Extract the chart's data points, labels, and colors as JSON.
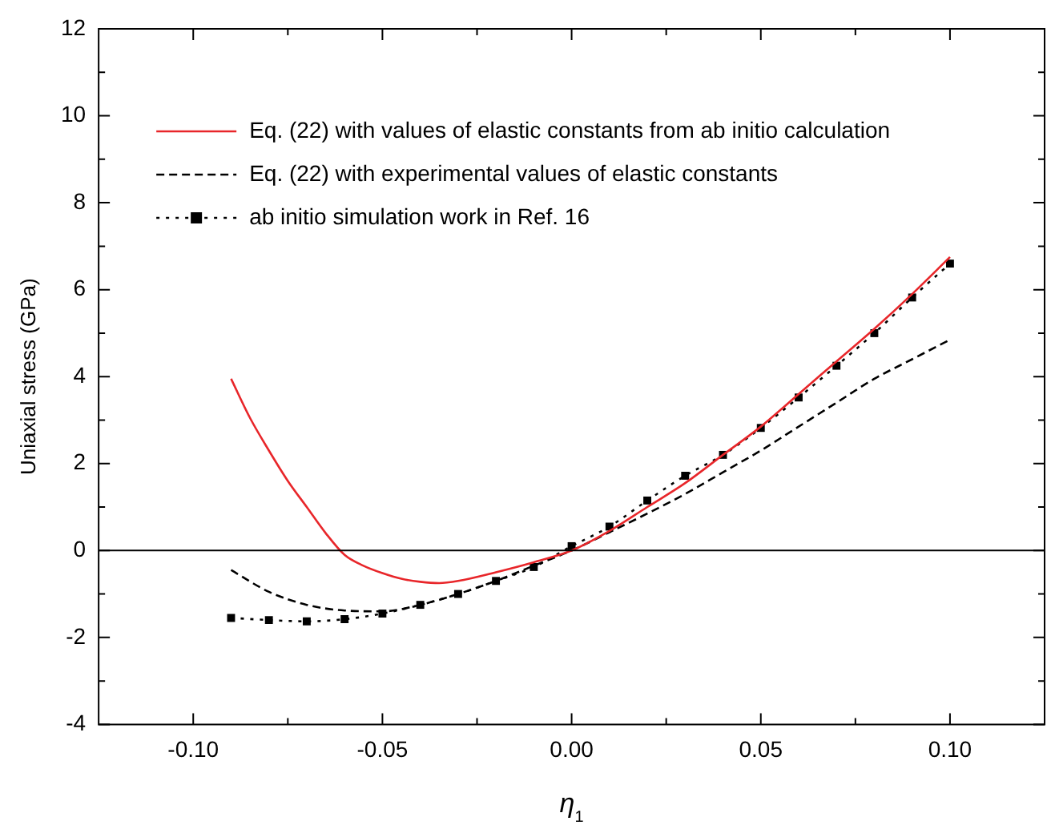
{
  "chart_data": {
    "type": "line",
    "xlabel": "η$_{1}$",
    "ylabel": "Uniaxial stress (GPa)",
    "xlim": [
      -0.125,
      0.125
    ],
    "ylim": [
      -4,
      12
    ],
    "xticks": [
      {
        "value": -0.1,
        "label": "-0.10"
      },
      {
        "value": -0.075,
        "label": null
      },
      {
        "value": -0.05,
        "label": "-0.05"
      },
      {
        "value": -0.025,
        "label": null
      },
      {
        "value": 0,
        "label": "0.00"
      },
      {
        "value": 0.025,
        "label": null
      },
      {
        "value": 0.05,
        "label": "0.05"
      },
      {
        "value": 0.075,
        "label": null
      },
      {
        "value": 0.1,
        "label": "0.10"
      }
    ],
    "yticks": [
      -4,
      {
        "value": -3,
        "label": null
      },
      -2,
      {
        "value": -1,
        "label": null
      },
      0,
      {
        "value": 1,
        "label": null
      },
      2,
      {
        "value": 3,
        "label": null
      },
      4,
      {
        "value": 5,
        "label": null
      },
      6,
      {
        "value": 7,
        "label": null
      },
      8,
      {
        "value": 9,
        "label": null
      },
      10,
      {
        "value": 11,
        "label": null
      },
      12
    ],
    "grid": false,
    "legend": "top left",
    "ref_lines": [
      {
        "axis": "y",
        "value": 0,
        "color": "#000000",
        "line_style": "solid"
      }
    ],
    "series": [
      {
        "name": "Eq. (22) with values of elastic constants from ab initio calculation",
        "color": "#e8262a",
        "line_style": "solid",
        "marker": "none",
        "x": [
          -0.09,
          -0.085,
          -0.08,
          -0.075,
          -0.07,
          -0.065,
          -0.06,
          -0.055,
          -0.05,
          -0.045,
          -0.04,
          -0.035,
          -0.03,
          -0.02,
          -0.01,
          0,
          0.01,
          0.02,
          0.03,
          0.04,
          0.05,
          0.06,
          0.07,
          0.08,
          0.09,
          0.1
        ],
        "values": [
          3.95,
          3.05,
          2.3,
          1.6,
          1.0,
          0.4,
          -0.1,
          -0.35,
          -0.52,
          -0.65,
          -0.72,
          -0.75,
          -0.7,
          -0.5,
          -0.27,
          0,
          0.45,
          1.0,
          1.55,
          2.2,
          2.85,
          3.6,
          4.35,
          5.1,
          5.9,
          6.75
        ]
      },
      {
        "name": "Eq. (22) with experimental values of elastic constants",
        "color": "#000000",
        "line_style": "dashed",
        "marker": "none",
        "x": [
          -0.09,
          -0.08,
          -0.07,
          -0.06,
          -0.05,
          -0.04,
          -0.03,
          -0.02,
          -0.01,
          0,
          0.01,
          0.02,
          0.03,
          0.04,
          0.05,
          0.06,
          0.07,
          0.08,
          0.09,
          0.1
        ],
        "values": [
          -0.45,
          -0.95,
          -1.25,
          -1.38,
          -1.4,
          -1.25,
          -1.0,
          -0.7,
          -0.35,
          0,
          0.42,
          0.85,
          1.3,
          1.8,
          2.3,
          2.85,
          3.4,
          3.95,
          4.4,
          4.85
        ]
      },
      {
        "name": "ab initio simulation work in Ref. 16",
        "color": "#000000",
        "line_style": "dotted",
        "marker": "square",
        "x": [
          -0.09,
          -0.08,
          -0.07,
          -0.06,
          -0.05,
          -0.04,
          -0.03,
          -0.02,
          -0.01,
          0,
          0.01,
          0.02,
          0.03,
          0.04,
          0.05,
          0.06,
          0.07,
          0.08,
          0.09,
          0.1
        ],
        "values": [
          -1.55,
          -1.6,
          -1.63,
          -1.58,
          -1.45,
          -1.25,
          -1.0,
          -0.7,
          -0.38,
          0.1,
          0.55,
          1.15,
          1.72,
          2.2,
          2.82,
          3.52,
          4.25,
          5.0,
          5.82,
          6.6
        ]
      }
    ]
  }
}
